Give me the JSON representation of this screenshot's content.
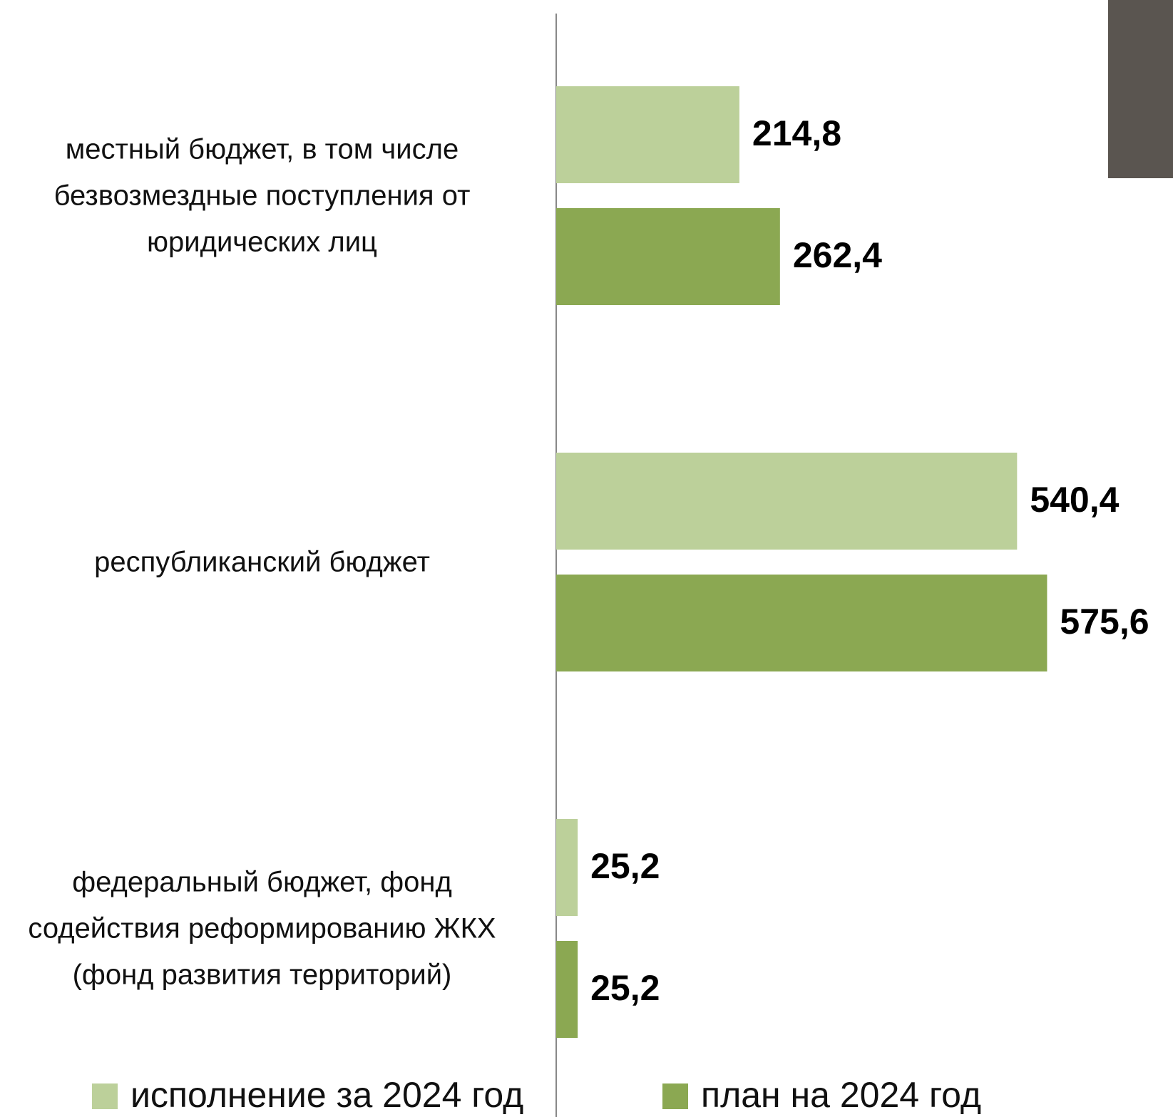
{
  "chart_data": {
    "type": "bar",
    "orientation": "horizontal",
    "categories": [
      "местный бюджет, в том числе безвозмездные поступления от юридических лиц",
      "республиканский бюджет",
      "федеральный бюджет, фонд содействия реформированию ЖКХ (фонд развития территорий)"
    ],
    "series": [
      {
        "name": "исполнение за 2024 год",
        "color": "#bcd09a",
        "values": [
          214.8,
          540.4,
          25.2
        ],
        "value_labels": [
          "214,8",
          "540,4",
          "25,2"
        ]
      },
      {
        "name": "план на 2024 год",
        "color": "#8ba852",
        "values": [
          262.4,
          575.6,
          25.2
        ],
        "value_labels": [
          "262,4",
          "575,6",
          "25,2"
        ]
      }
    ],
    "legend": "bottom"
  }
}
